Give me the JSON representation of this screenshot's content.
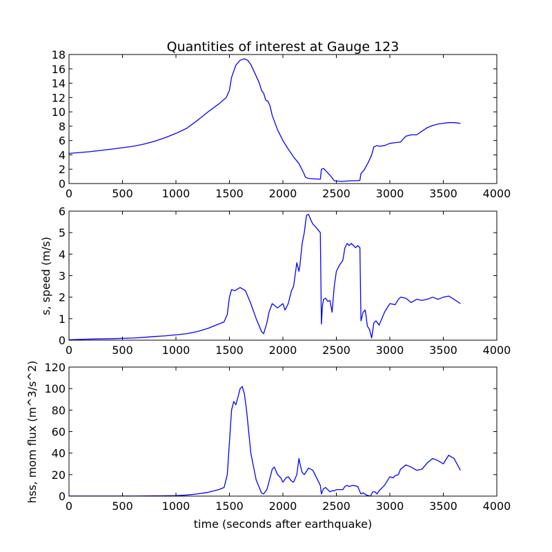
{
  "figure": {
    "background": "#ffffff",
    "line_color": "#0000ff"
  },
  "chart_data": [
    {
      "type": "line",
      "title": "Quantities of interest at Gauge 123",
      "xlabel": "",
      "ylabel": "",
      "xlim": [
        0,
        4000
      ],
      "ylim": [
        0,
        18
      ],
      "xticks": [
        "0",
        "500",
        "1000",
        "1500",
        "2000",
        "2500",
        "3000",
        "3500",
        "4000"
      ],
      "yticks": [
        "0",
        "2",
        "4",
        "6",
        "8",
        "10",
        "12",
        "14",
        "16",
        "18"
      ],
      "series": [
        {
          "color": "#0000ff",
          "x": [
            0,
            200,
            400,
            600,
            700,
            800,
            900,
            1000,
            1100,
            1200,
            1300,
            1400,
            1470,
            1500,
            1520,
            1560,
            1600,
            1640,
            1670,
            1700,
            1750,
            1780,
            1800,
            1820,
            1840,
            1860,
            1880,
            1900,
            1950,
            2000,
            2050,
            2100,
            2150,
            2200,
            2210,
            2230,
            2250,
            2300,
            2350,
            2360,
            2380,
            2400,
            2450,
            2480,
            2500,
            2550,
            2600,
            2650,
            2700,
            2720,
            2730,
            2760,
            2800,
            2830,
            2850,
            2880,
            2900,
            2950,
            3000,
            3050,
            3100,
            3150,
            3200,
            3250,
            3300,
            3350,
            3400,
            3450,
            3500,
            3550,
            3600,
            3660
          ],
          "y": [
            4.2,
            4.45,
            4.8,
            5.2,
            5.5,
            5.9,
            6.4,
            7.0,
            7.7,
            8.8,
            10.0,
            11.1,
            12.0,
            13.0,
            14.8,
            16.5,
            17.2,
            17.4,
            17.2,
            16.6,
            15.0,
            14.0,
            13.0,
            12.6,
            11.6,
            11.5,
            10.8,
            9.5,
            7.5,
            6.0,
            4.8,
            3.7,
            2.8,
            1.3,
            0.9,
            0.75,
            0.7,
            0.65,
            0.6,
            2.0,
            2.1,
            1.8,
            1.0,
            0.4,
            0.35,
            0.3,
            0.35,
            0.4,
            0.4,
            0.45,
            1.4,
            1.9,
            3.0,
            4.0,
            5.1,
            5.3,
            5.2,
            5.3,
            5.6,
            5.7,
            5.8,
            6.6,
            6.8,
            6.8,
            7.3,
            7.8,
            8.1,
            8.3,
            8.4,
            8.5,
            8.5,
            8.4
          ]
        }
      ]
    },
    {
      "type": "line",
      "title": "",
      "xlabel": "",
      "ylabel": "s, speed (m/s)",
      "xlim": [
        0,
        4000
      ],
      "ylim": [
        0,
        6
      ],
      "xticks": [
        "0",
        "500",
        "1000",
        "1500",
        "2000",
        "2500",
        "3000",
        "3500",
        "4000"
      ],
      "yticks": [
        "0",
        "1",
        "2",
        "3",
        "4",
        "5",
        "6"
      ],
      "series": [
        {
          "color": "#0000ff",
          "x": [
            0,
            200,
            400,
            600,
            700,
            800,
            900,
            1000,
            1100,
            1200,
            1300,
            1400,
            1450,
            1480,
            1500,
            1520,
            1550,
            1600,
            1650,
            1700,
            1750,
            1800,
            1820,
            1850,
            1870,
            1900,
            1950,
            2000,
            2020,
            2050,
            2080,
            2100,
            2130,
            2150,
            2160,
            2180,
            2200,
            2220,
            2240,
            2260,
            2280,
            2300,
            2350,
            2360,
            2370,
            2380,
            2400,
            2420,
            2440,
            2460,
            2480,
            2500,
            2530,
            2560,
            2580,
            2600,
            2620,
            2640,
            2660,
            2680,
            2700,
            2720,
            2730,
            2750,
            2770,
            2790,
            2810,
            2830,
            2850,
            2870,
            2900,
            2950,
            3000,
            3050,
            3080,
            3100,
            3150,
            3200,
            3250,
            3300,
            3350,
            3400,
            3450,
            3500,
            3550,
            3600,
            3660
          ],
          "y": [
            0.02,
            0.05,
            0.07,
            0.1,
            0.13,
            0.17,
            0.2,
            0.25,
            0.3,
            0.4,
            0.55,
            0.75,
            0.85,
            1.2,
            2.0,
            2.35,
            2.3,
            2.45,
            2.3,
            1.7,
            1.0,
            0.4,
            0.3,
            0.8,
            1.3,
            1.7,
            1.5,
            1.7,
            1.4,
            1.7,
            2.3,
            2.5,
            3.6,
            3.2,
            3.5,
            4.5,
            5.0,
            5.8,
            5.85,
            5.6,
            5.4,
            5.3,
            5.0,
            0.75,
            1.6,
            1.9,
            1.95,
            1.8,
            1.85,
            1.3,
            2.5,
            3.2,
            3.5,
            3.7,
            4.3,
            4.5,
            4.4,
            4.5,
            4.4,
            4.3,
            4.4,
            4.3,
            0.9,
            1.3,
            1.4,
            0.65,
            0.5,
            0.1,
            0.8,
            0.9,
            0.7,
            1.3,
            1.7,
            1.65,
            1.9,
            2.0,
            1.95,
            1.75,
            1.9,
            1.85,
            1.9,
            2.0,
            1.9,
            2.0,
            2.05,
            1.9,
            1.7
          ]
        }
      ]
    },
    {
      "type": "line",
      "title": "",
      "xlabel": "time (seconds after earthquake)",
      "ylabel": "hss, mom flux (m^3/s^2)",
      "xlim": [
        0,
        4000
      ],
      "ylim": [
        0,
        120
      ],
      "xticks": [
        "0",
        "500",
        "1000",
        "1500",
        "2000",
        "2500",
        "3000",
        "3500",
        "4000"
      ],
      "yticks": [
        "0",
        "20",
        "40",
        "60",
        "80",
        "100",
        "120"
      ],
      "series": [
        {
          "color": "#0000ff",
          "x": [
            0,
            200,
            400,
            600,
            800,
            900,
            1000,
            1100,
            1200,
            1300,
            1400,
            1450,
            1480,
            1500,
            1520,
            1540,
            1560,
            1580,
            1600,
            1620,
            1640,
            1660,
            1700,
            1750,
            1800,
            1820,
            1850,
            1880,
            1900,
            1920,
            1950,
            1980,
            2000,
            2030,
            2050,
            2080,
            2100,
            2130,
            2150,
            2160,
            2180,
            2200,
            2240,
            2280,
            2300,
            2320,
            2350,
            2360,
            2380,
            2400,
            2420,
            2440,
            2460,
            2480,
            2500,
            2520,
            2540,
            2560,
            2580,
            2600,
            2620,
            2650,
            2680,
            2700,
            2720,
            2730,
            2750,
            2780,
            2800,
            2820,
            2840,
            2860,
            2880,
            2900,
            2950,
            3000,
            3030,
            3050,
            3080,
            3100,
            3150,
            3200,
            3250,
            3300,
            3350,
            3400,
            3450,
            3500,
            3550,
            3600,
            3660
          ],
          "y": [
            0.1,
            0.1,
            0.1,
            0.1,
            0.2,
            0.3,
            0.5,
            1.0,
            2.0,
            3.5,
            6.0,
            8.0,
            20.0,
            50.0,
            80.0,
            88.0,
            85.0,
            92.0,
            100.0,
            102.0,
            95.0,
            80.0,
            40.0,
            15.0,
            3.0,
            2.0,
            6.0,
            17.0,
            25.0,
            27.0,
            20.0,
            17.0,
            13.0,
            17.0,
            18.0,
            14.0,
            13.0,
            20.0,
            35.0,
            30.0,
            22.0,
            20.0,
            26.0,
            24.0,
            20.0,
            16.0,
            10.0,
            2.0,
            7.0,
            8.0,
            6.0,
            4.0,
            5.0,
            5.0,
            6.0,
            6.0,
            6.0,
            6.0,
            9.0,
            10.0,
            9.0,
            10.0,
            9.5,
            9.0,
            4.0,
            2.0,
            3.0,
            1.0,
            0.5,
            0.0,
            4.0,
            4.0,
            2.0,
            5.0,
            10.0,
            18.0,
            17.0,
            19.0,
            20.0,
            25.0,
            29.0,
            27.0,
            24.0,
            25.0,
            31.0,
            35.0,
            33.0,
            30.0,
            38.0,
            35.0,
            24.0
          ]
        }
      ]
    }
  ]
}
